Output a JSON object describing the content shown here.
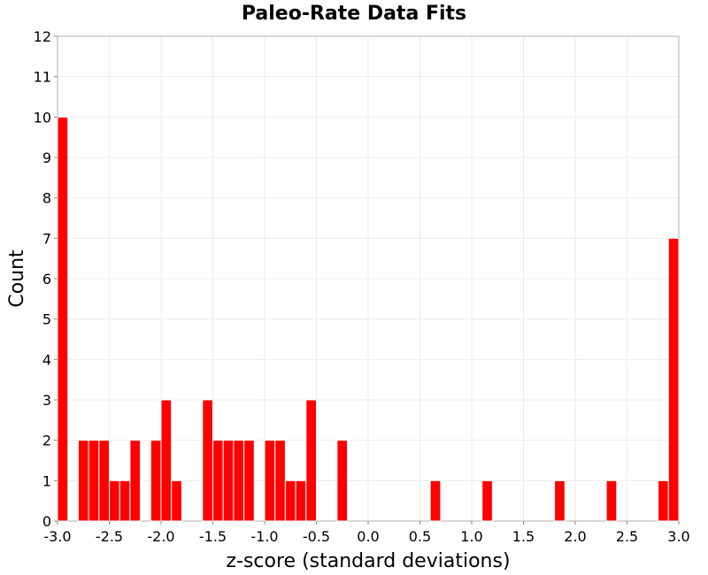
{
  "chart_data": {
    "type": "bar",
    "title": "Paleo-Rate Data Fits",
    "xlabel": "z-score (standard deviations)",
    "ylabel": "Count",
    "xlim": [
      -3.0,
      3.0
    ],
    "ylim": [
      0,
      12
    ],
    "bin_width": 0.1,
    "x_ticks": [
      "-3.0",
      "-2.5",
      "-2.0",
      "-1.5",
      "-1.0",
      "-0.5",
      "0.0",
      "0.5",
      "1.0",
      "1.5",
      "2.0",
      "2.5",
      "3.0"
    ],
    "y_ticks": [
      "0",
      "1",
      "2",
      "3",
      "4",
      "5",
      "6",
      "7",
      "8",
      "9",
      "10",
      "11",
      "12"
    ],
    "grid": true,
    "bar_color": "#ff0000",
    "bins": [
      {
        "x": -3.0,
        "value": 10
      },
      {
        "x": -2.8,
        "value": 2
      },
      {
        "x": -2.7,
        "value": 2
      },
      {
        "x": -2.6,
        "value": 2
      },
      {
        "x": -2.5,
        "value": 1
      },
      {
        "x": -2.4,
        "value": 1
      },
      {
        "x": -2.3,
        "value": 2
      },
      {
        "x": -2.1,
        "value": 2
      },
      {
        "x": -2.0,
        "value": 3
      },
      {
        "x": -1.9,
        "value": 1
      },
      {
        "x": -1.6,
        "value": 3
      },
      {
        "x": -1.5,
        "value": 2
      },
      {
        "x": -1.4,
        "value": 2
      },
      {
        "x": -1.3,
        "value": 2
      },
      {
        "x": -1.2,
        "value": 2
      },
      {
        "x": -1.0,
        "value": 2
      },
      {
        "x": -0.9,
        "value": 2
      },
      {
        "x": -0.8,
        "value": 1
      },
      {
        "x": -0.7,
        "value": 1
      },
      {
        "x": -0.6,
        "value": 3
      },
      {
        "x": -0.3,
        "value": 2
      },
      {
        "x": 0.6,
        "value": 1
      },
      {
        "x": 1.1,
        "value": 1
      },
      {
        "x": 1.8,
        "value": 1
      },
      {
        "x": 2.3,
        "value": 1
      },
      {
        "x": 2.8,
        "value": 1
      },
      {
        "x": 2.9,
        "value": 7
      }
    ]
  }
}
